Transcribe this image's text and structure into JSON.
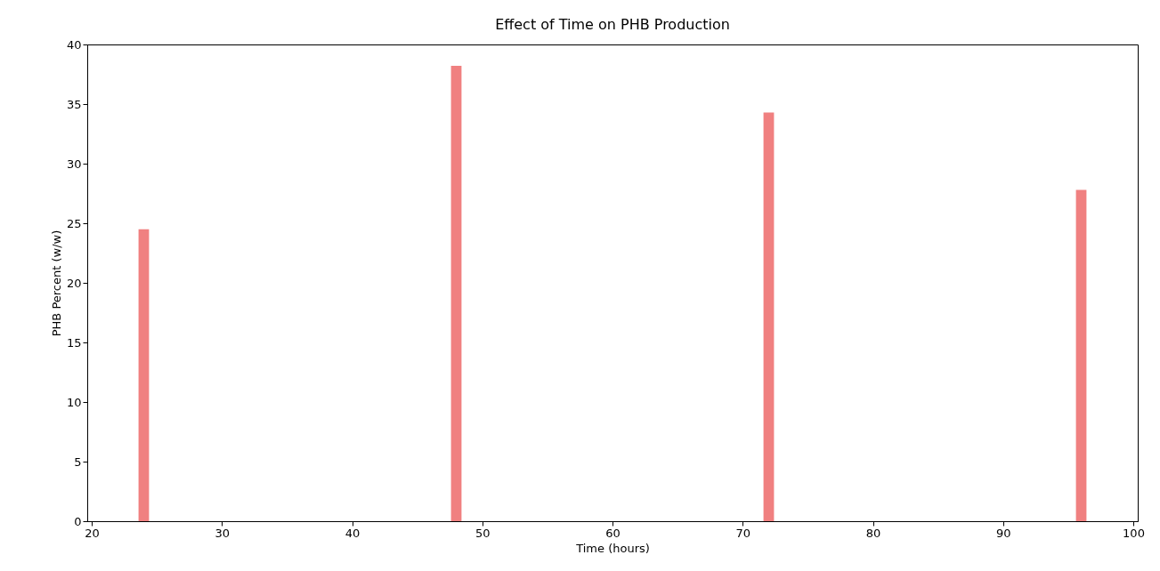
{
  "chart_data": {
    "type": "bar",
    "title": "Effect of Time on PHB Production",
    "xlabel": "Time (hours)",
    "ylabel": "PHB Percent (w/w)",
    "x": [
      24,
      48,
      72,
      96
    ],
    "values": [
      24.5,
      38.2,
      34.3,
      27.8
    ],
    "color": "#f08080",
    "xlim": [
      20,
      100
    ],
    "xticks": [
      20,
      30,
      40,
      50,
      60,
      70,
      80,
      90,
      100
    ],
    "ylim": [
      0,
      40
    ],
    "yticks": [
      0,
      5,
      10,
      15,
      20,
      25,
      30,
      35,
      40
    ],
    "grid": false
  }
}
